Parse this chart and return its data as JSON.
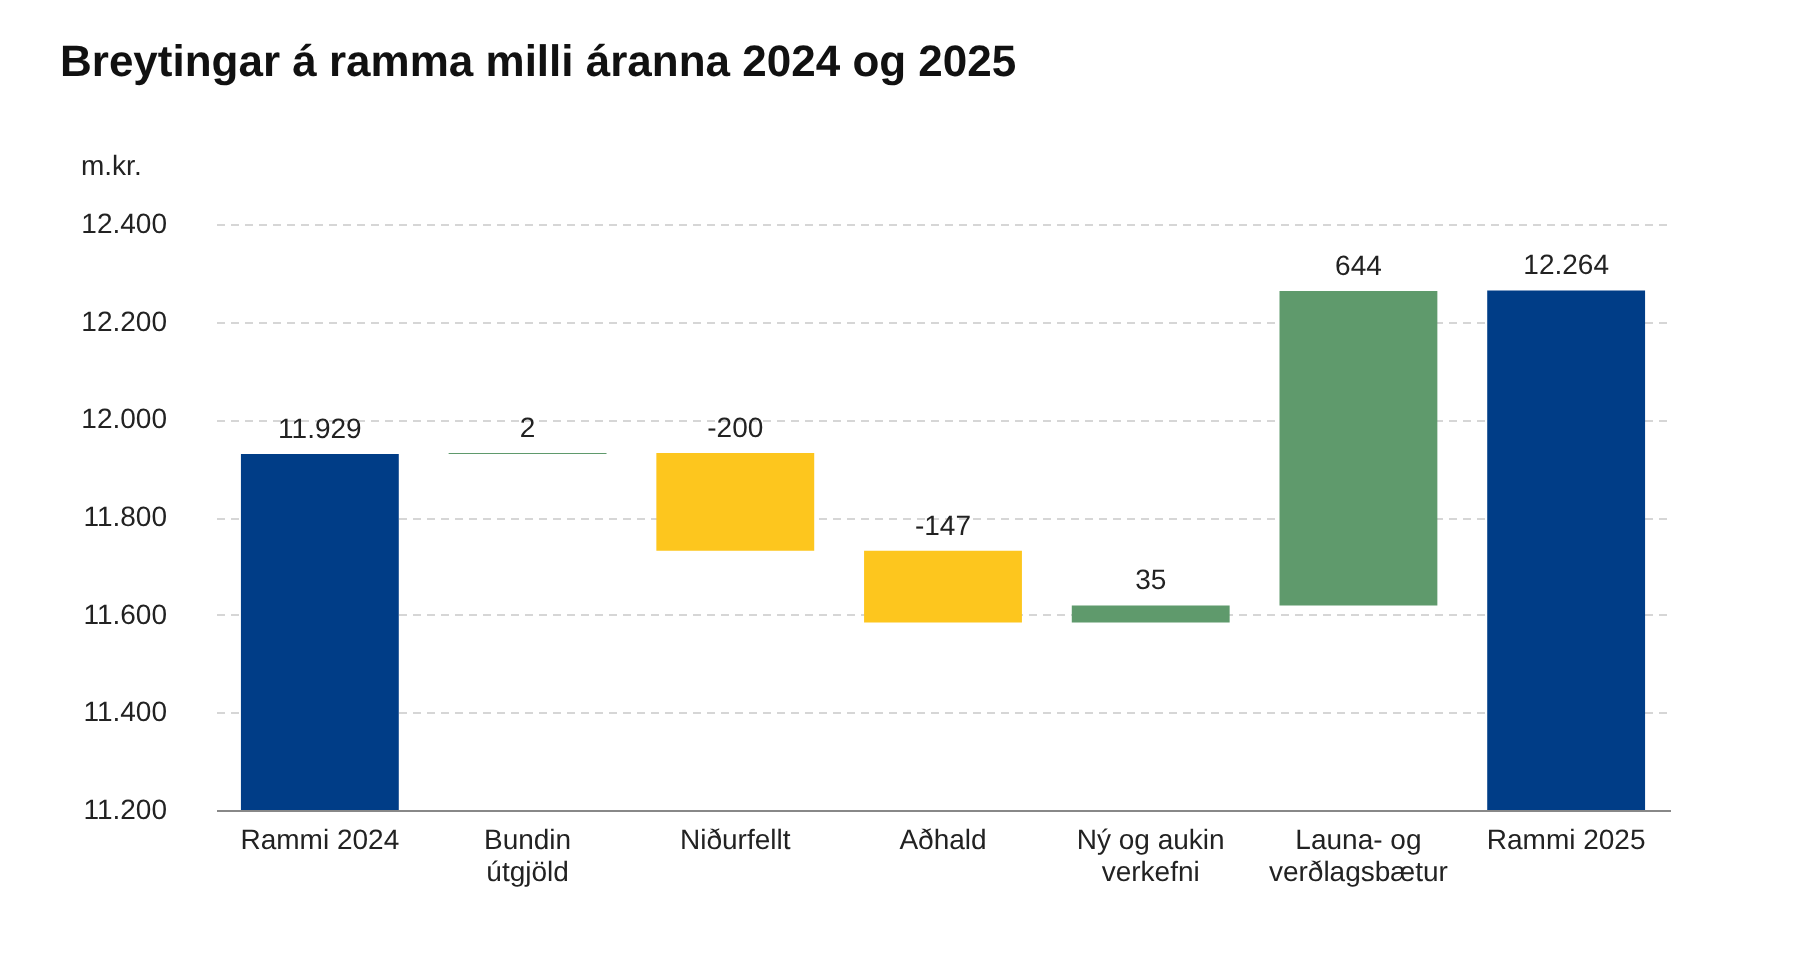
{
  "chart_data": {
    "type": "bar",
    "title": "Breytingar á ramma milli áranna 2024 og 2025",
    "ylabel": "m.kr.",
    "categories": [
      "Rammi 2024",
      "Bundin útgjöld",
      "Niðurfellt",
      "Aðhald",
      "Ný og aukin verkefni",
      "Launa- og verðlagsbætur",
      "Rammi 2025"
    ],
    "values": [
      11929,
      2,
      -200,
      -147,
      35,
      644,
      12264
    ],
    "base": [
      null,
      11929,
      11931,
      11731,
      11584,
      11619,
      null
    ],
    "colors": [
      "#003d87",
      "#5f9a6c",
      "#fdc61e",
      "#fdc61e",
      "#5f9a6c",
      "#5f9a6c",
      "#003d87"
    ],
    "value_labels": [
      "11.929",
      "2",
      "-200",
      "-147",
      "35",
      "644",
      "12.264"
    ],
    "ylim": [
      11200,
      12400
    ],
    "yticks": [
      {
        "value": 11200,
        "label": "11.200"
      },
      {
        "value": 11400,
        "label": "11.400"
      },
      {
        "value": 11600,
        "label": "11.600"
      },
      {
        "value": 11800,
        "label": "11.800"
      },
      {
        "value": 12000,
        "label": "12.000"
      },
      {
        "value": 12200,
        "label": "12.200"
      },
      {
        "value": 12400,
        "label": "12.400"
      }
    ],
    "grid": "y"
  }
}
